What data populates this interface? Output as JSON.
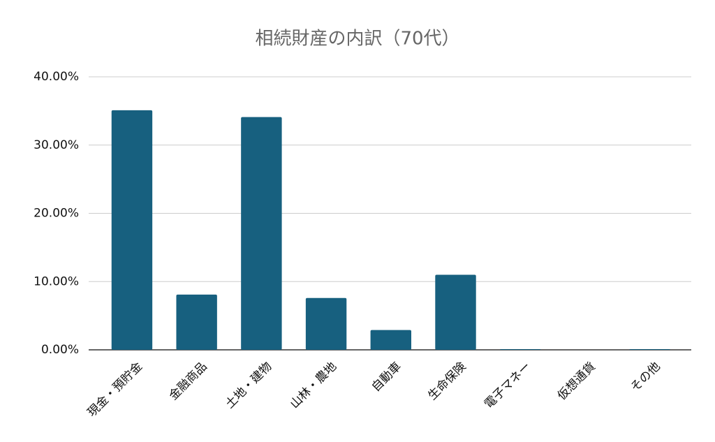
{
  "chart_data": {
    "type": "bar",
    "title": "相続財産の内訳（70代）",
    "categories": [
      "現金・預貯金",
      "金融商品",
      "土地・建物",
      "山林・農地",
      "自動車",
      "生命保険",
      "電子マネー",
      "仮想通貨",
      "その他"
    ],
    "values": [
      35.1,
      8.1,
      34.1,
      7.6,
      2.9,
      11.0,
      0.1,
      0,
      0.1
    ],
    "color": "#17607f",
    "ylim": [
      0,
      40
    ],
    "yticks": [
      {
        "value": 0,
        "label": "0.00%"
      },
      {
        "value": 10,
        "label": "10.00%"
      },
      {
        "value": 20,
        "label": "20.00%"
      },
      {
        "value": 30,
        "label": "30.00%"
      },
      {
        "value": 40,
        "label": "40.00%"
      }
    ],
    "grid": true
  }
}
